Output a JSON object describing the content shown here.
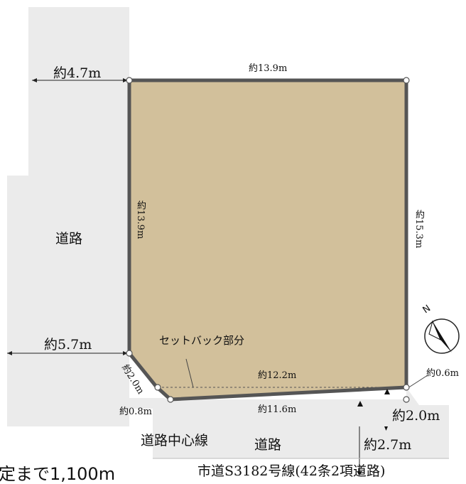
{
  "roads": {
    "west_label": "道路",
    "south_label": "道路",
    "centerline_label": "道路中心線",
    "road_name": "市道S3182号線(42条2項道路)"
  },
  "site": {
    "north_edge": "約13.9m",
    "west_edge": "約13.9m",
    "east_edge": "約15.3m",
    "south_boundary": "約12.2m",
    "south_edge": "約11.6m",
    "corner_cut": "約2.0m",
    "corner_offset": "約0.8m",
    "east_setback": "約0.6m"
  },
  "offsets": {
    "top_left": "約4.7m",
    "left_middle": "約5.7m",
    "road_width_a": "約2.0m",
    "road_width_b": "約2.7m"
  },
  "setback_label": "セットバック部分",
  "footer_partial": "定まで1,100m",
  "compass": {
    "letter": "N",
    "icon": "north-arrow-icon"
  },
  "colors": {
    "lot_fill": "#d2c09b",
    "road_fill": "#ebebeb",
    "border": "#555555"
  }
}
